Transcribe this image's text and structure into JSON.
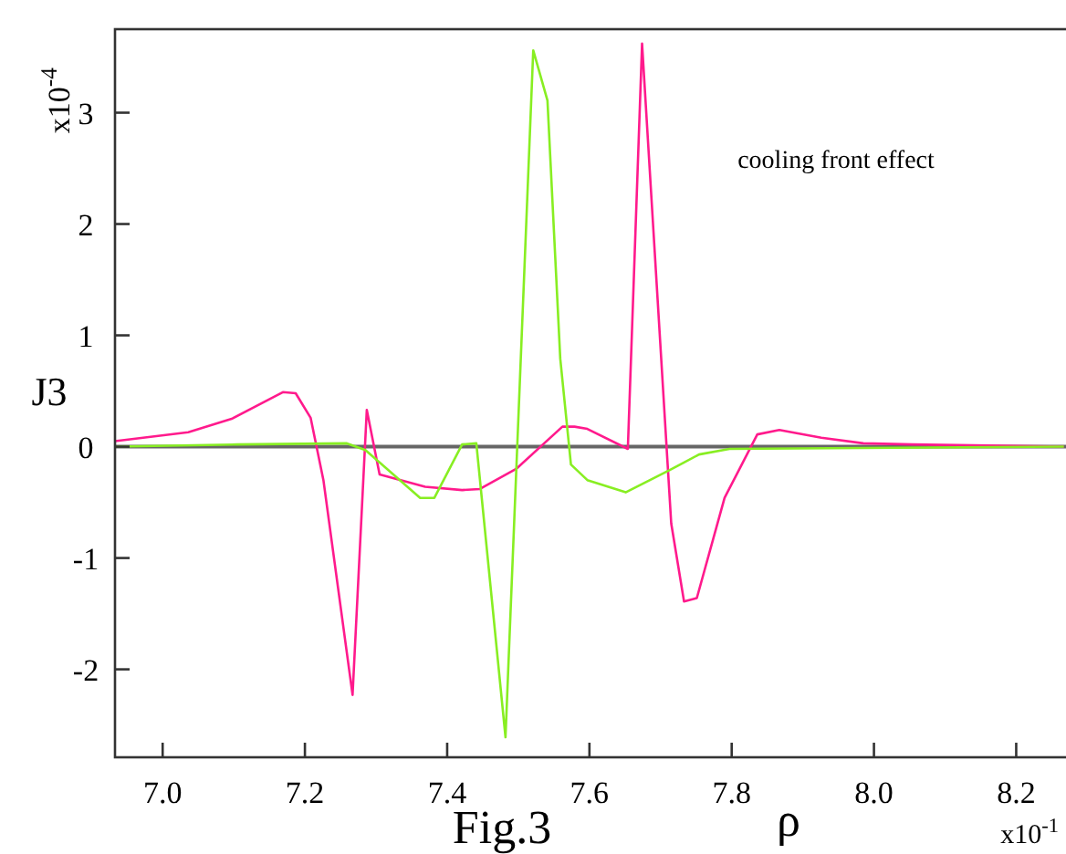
{
  "chart_data": {
    "type": "line",
    "xlabel": "ρ",
    "ylabel": "J3",
    "xlim": [
      6.933,
      8.27
    ],
    "ylim": [
      -2.79,
      3.75
    ],
    "xticks": [
      {
        "value": 7.0,
        "label": "7.0"
      },
      {
        "value": 7.2,
        "label": "7.2"
      },
      {
        "value": 7.4,
        "label": "7.4"
      },
      {
        "value": 7.6,
        "label": "7.6"
      },
      {
        "value": 7.8,
        "label": "7.8"
      },
      {
        "value": 8.0,
        "label": "8.0"
      },
      {
        "value": 8.2,
        "label": "8.2"
      }
    ],
    "yticks": [
      -2,
      -1,
      0,
      1,
      2,
      3
    ],
    "grid": false,
    "marker": "none",
    "line_style": "solid",
    "ref_lines": [
      {
        "axis": "y",
        "value": 0,
        "color": "#666666"
      }
    ],
    "annotations": [
      "x10$^{-4}$",
      "x10$^{-1}$",
      "Fig.3",
      "cooling front effect"
    ],
    "series": [
      {
        "color": "#ff1a8c",
        "x": [
          6.933,
          7.036,
          7.097,
          7.169,
          7.187,
          7.208,
          7.226,
          7.267,
          7.287,
          7.305,
          7.369,
          7.421,
          7.446,
          7.497,
          7.562,
          7.579,
          7.597,
          7.654,
          7.674,
          7.715,
          7.733,
          7.751,
          7.79,
          7.836,
          7.867,
          7.926,
          7.985,
          8.054,
          8.267
        ],
        "values": [
          0.05,
          0.13,
          0.25,
          0.49,
          0.48,
          0.26,
          -0.3,
          -2.23,
          0.33,
          -0.25,
          -0.36,
          -0.39,
          -0.38,
          -0.2,
          0.18,
          0.18,
          0.16,
          -0.02,
          3.62,
          -0.69,
          -1.39,
          -1.36,
          -0.46,
          0.11,
          0.15,
          0.08,
          0.03,
          0.02,
          0
        ]
      },
      {
        "color": "#88ee22",
        "x": [
          6.933,
          7.105,
          7.259,
          7.285,
          7.362,
          7.382,
          7.421,
          7.441,
          7.482,
          7.521,
          7.541,
          7.559,
          7.574,
          7.597,
          7.651,
          7.713,
          7.754,
          7.797,
          8.267
        ],
        "values": [
          0,
          0.02,
          0.03,
          -0.03,
          -0.46,
          -0.46,
          0.02,
          0.03,
          -2.61,
          3.56,
          3.11,
          0.79,
          -0.16,
          -0.3,
          -0.41,
          -0.21,
          -0.07,
          -0.02,
          0
        ]
      }
    ]
  }
}
